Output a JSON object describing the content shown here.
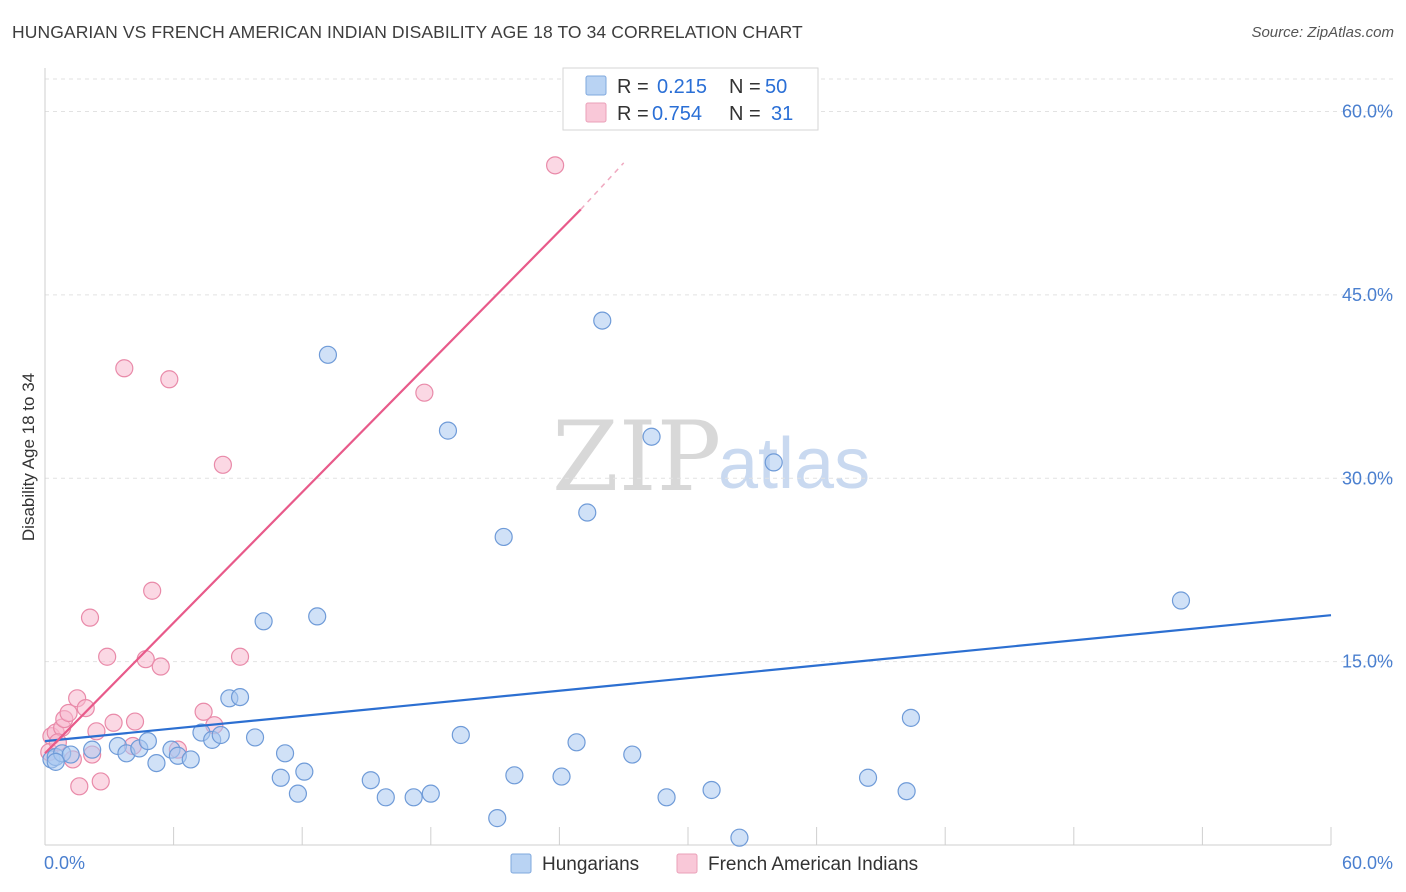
{
  "header": {
    "title": "HUNGARIAN VS FRENCH AMERICAN INDIAN DISABILITY AGE 18 TO 34 CORRELATION CHART",
    "source": "Source: ZipAtlas.com"
  },
  "watermark": {
    "zip": "ZIP",
    "atlas": "atlas"
  },
  "chart_data": {
    "type": "scatter",
    "title": "HUNGARIAN VS FRENCH AMERICAN INDIAN DISABILITY AGE 18 TO 34 CORRELATION CHART",
    "xlabel": "",
    "ylabel": "Disability Age 18 to 34",
    "xlim": [
      0,
      60
    ],
    "ylim": [
      0,
      62.5
    ],
    "x_tick_labels": {
      "min": "0.0%",
      "max": "60.0%"
    },
    "y_ticks": [
      {
        "value": 15,
        "label": "15.0%"
      },
      {
        "value": 30,
        "label": "30.0%"
      },
      {
        "value": 45,
        "label": "45.0%"
      },
      {
        "value": 60,
        "label": "60.0%"
      }
    ],
    "grid": true,
    "legend": {
      "position": "top-center",
      "entries": [
        {
          "r_label": "R =",
          "r_value": "0.215",
          "n_label": "N =",
          "n_value": "50"
        },
        {
          "r_label": "R =",
          "r_value": "0.754",
          "n_label": "N =",
          "n_value": "31"
        }
      ]
    },
    "series": [
      {
        "name": "Hungarians",
        "color": "#a9c8f0",
        "stroke": "#6f9bd8",
        "trend_color": "#2c6fd1",
        "trend": {
          "x0": 0,
          "y0": 8.5,
          "x1": 60,
          "y1": 18.8
        },
        "points": [
          [
            0.3,
            7.0
          ],
          [
            0.5,
            7.2
          ],
          [
            0.8,
            7.5
          ],
          [
            1.2,
            7.4
          ],
          [
            2.2,
            7.8
          ],
          [
            3.4,
            8.1
          ],
          [
            3.8,
            7.5
          ],
          [
            4.4,
            7.9
          ],
          [
            4.8,
            8.5
          ],
          [
            5.2,
            6.7
          ],
          [
            5.9,
            7.8
          ],
          [
            6.2,
            7.3
          ],
          [
            6.8,
            7.0
          ],
          [
            7.3,
            9.2
          ],
          [
            7.8,
            8.6
          ],
          [
            8.2,
            9.0
          ],
          [
            8.6,
            12.0
          ],
          [
            9.1,
            12.1
          ],
          [
            9.8,
            8.8
          ],
          [
            10.2,
            18.3
          ],
          [
            11.2,
            7.5
          ],
          [
            11.8,
            4.2
          ],
          [
            11.0,
            5.5
          ],
          [
            12.1,
            6.0
          ],
          [
            12.7,
            18.7
          ],
          [
            13.2,
            40.1
          ],
          [
            15.2,
            5.3
          ],
          [
            15.9,
            3.9
          ],
          [
            17.2,
            3.9
          ],
          [
            18.0,
            4.2
          ],
          [
            18.8,
            33.9
          ],
          [
            19.4,
            9.0
          ],
          [
            21.1,
            2.2
          ],
          [
            21.4,
            25.2
          ],
          [
            21.9,
            5.7
          ],
          [
            24.1,
            5.6
          ],
          [
            24.8,
            8.4
          ],
          [
            25.3,
            27.2
          ],
          [
            26.0,
            42.9
          ],
          [
            27.4,
            7.4
          ],
          [
            28.3,
            33.4
          ],
          [
            29.0,
            3.9
          ],
          [
            31.1,
            4.5
          ],
          [
            32.4,
            0.6
          ],
          [
            34.0,
            31.3
          ],
          [
            38.4,
            5.5
          ],
          [
            40.2,
            4.4
          ],
          [
            40.4,
            10.4
          ],
          [
            53.0,
            20.0
          ],
          [
            0.5,
            6.8
          ]
        ]
      },
      {
        "name": "French American Indians",
        "color": "#f7b8cd",
        "stroke": "#e98aa9",
        "trend_color": "#e85a8a",
        "trend": {
          "x0": 0,
          "y0": 7.5,
          "x1": 25.0,
          "y1": 52.0
        },
        "trend_ext": {
          "x0": 25.0,
          "y0": 52.0,
          "x1": 27.0,
          "y1": 55.8
        },
        "points": [
          [
            0.3,
            8.9
          ],
          [
            0.5,
            9.2
          ],
          [
            0.8,
            9.6
          ],
          [
            0.9,
            10.3
          ],
          [
            1.1,
            10.8
          ],
          [
            1.3,
            7.0
          ],
          [
            1.5,
            12.0
          ],
          [
            1.6,
            4.8
          ],
          [
            1.9,
            11.2
          ],
          [
            2.1,
            18.6
          ],
          [
            2.2,
            7.4
          ],
          [
            2.4,
            9.3
          ],
          [
            2.6,
            5.2
          ],
          [
            2.9,
            15.4
          ],
          [
            3.2,
            10.0
          ],
          [
            3.7,
            39.0
          ],
          [
            4.1,
            8.1
          ],
          [
            4.2,
            10.1
          ],
          [
            4.7,
            15.2
          ],
          [
            5.0,
            20.8
          ],
          [
            5.4,
            14.6
          ],
          [
            5.8,
            38.1
          ],
          [
            6.2,
            7.8
          ],
          [
            7.4,
            10.9
          ],
          [
            7.9,
            9.8
          ],
          [
            8.3,
            31.1
          ],
          [
            9.1,
            15.4
          ],
          [
            17.7,
            37.0
          ],
          [
            23.8,
            55.6
          ],
          [
            0.2,
            7.6
          ],
          [
            0.6,
            8.4
          ]
        ]
      }
    ]
  }
}
